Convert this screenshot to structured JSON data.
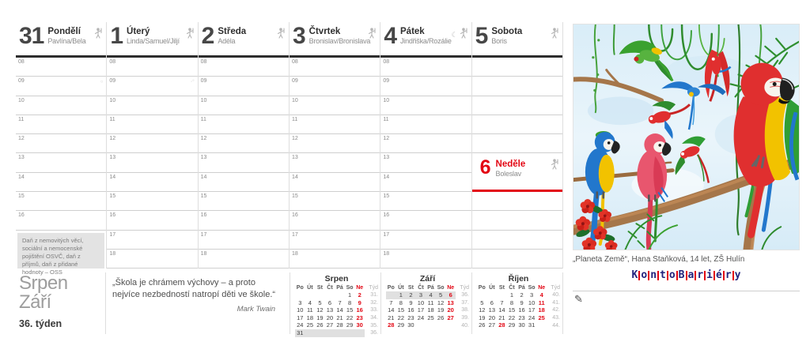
{
  "colors": {
    "red": "#e30613",
    "dark": "#2d2d2d",
    "gray_text": "#8c8c8c",
    "line": "#cfcfcf",
    "note_bg": "#e3e3e3",
    "highlight": "#e0e0e0",
    "logo_navy": "#23237d"
  },
  "days": [
    {
      "number": "31",
      "name": "Pondělí",
      "nameday": "Pavlína/Bela",
      "hours": [
        "08",
        "09",
        "10",
        "11",
        "12",
        "13",
        "14",
        "15",
        "16"
      ],
      "marks": {
        "09": "○"
      },
      "note": "Daň z nemovitých věcí, sociální a nemocenské pojištění OSVČ, daň z příjmů, daň z přidané hodnoty – OSS"
    },
    {
      "number": "1",
      "name": "Úterý",
      "nameday": "Linda/Samuel/Jiljí",
      "hours": [
        "08",
        "09",
        "10",
        "11",
        "12",
        "13",
        "14",
        "15",
        "16",
        "17",
        "18"
      ],
      "marks": {
        "09": "◦°"
      }
    },
    {
      "number": "2",
      "name": "Středa",
      "nameday": "Adéla",
      "hours": [
        "08",
        "09",
        "10",
        "11",
        "12",
        "13",
        "14",
        "15",
        "16",
        "17",
        "18"
      ]
    },
    {
      "number": "3",
      "name": "Čtvrtek",
      "nameday": "Bronislav/Bronislava",
      "hours": [
        "08",
        "09",
        "10",
        "11",
        "12",
        "13",
        "14",
        "15",
        "16",
        "17",
        "18"
      ]
    },
    {
      "number": "4",
      "name": "Pátek",
      "nameday": "Jindřiška/Rozálie",
      "moon": "☾",
      "hours": [
        "08",
        "09",
        "10",
        "11",
        "12",
        "13",
        "14",
        "15",
        "16",
        "17",
        "18"
      ]
    },
    {
      "number": "5",
      "name": "Sobota",
      "nameday": "Boris",
      "hours": [],
      "blank_rows": 11
    }
  ],
  "sunday": {
    "number": "6",
    "name": "Neděle",
    "nameday": "Boleslav"
  },
  "footer": {
    "month_top": "Srpen",
    "month_bottom": "Září",
    "week_label": "36. týden"
  },
  "quote": {
    "text": "„Škola je chrámem výchovy – a proto nejvíce nezbedností natropí děti ve škole.“",
    "author": "Mark Twain"
  },
  "mini_calendars": [
    {
      "title": "Srpen",
      "dow": [
        "Po",
        "Út",
        "St",
        "Čt",
        "Pá",
        "So",
        "Ne"
      ],
      "week_header": "Týd",
      "red_days": [
        "2",
        "9",
        "16",
        "23",
        "30"
      ],
      "weeks": [
        {
          "days": [
            "",
            "",
            "",
            "",
            "",
            "1",
            "2"
          ],
          "num": "31."
        },
        {
          "days": [
            "3",
            "4",
            "5",
            "6",
            "7",
            "8",
            "9"
          ],
          "num": "32."
        },
        {
          "days": [
            "10",
            "11",
            "12",
            "13",
            "14",
            "15",
            "16"
          ],
          "num": "33."
        },
        {
          "days": [
            "17",
            "18",
            "19",
            "20",
            "21",
            "22",
            "23"
          ],
          "num": "34."
        },
        {
          "days": [
            "24",
            "25",
            "26",
            "27",
            "28",
            "29",
            "30"
          ],
          "num": "35."
        },
        {
          "days": [
            "31",
            "",
            "",
            "",
            "",
            "",
            ""
          ],
          "num": "36.",
          "highlight": true
        }
      ]
    },
    {
      "title": "Září",
      "dow": [
        "Po",
        "Út",
        "St",
        "Čt",
        "Pá",
        "So",
        "Ne"
      ],
      "week_header": "Týd",
      "red_days": [
        "6",
        "13",
        "20",
        "27",
        "28"
      ],
      "weeks": [
        {
          "days": [
            "",
            "1",
            "2",
            "3",
            "4",
            "5",
            "6"
          ],
          "num": "36.",
          "highlight": true
        },
        {
          "days": [
            "7",
            "8",
            "9",
            "10",
            "11",
            "12",
            "13"
          ],
          "num": "37."
        },
        {
          "days": [
            "14",
            "15",
            "16",
            "17",
            "18",
            "19",
            "20"
          ],
          "num": "38."
        },
        {
          "days": [
            "21",
            "22",
            "23",
            "24",
            "25",
            "26",
            "27"
          ],
          "num": "39."
        },
        {
          "days": [
            "28",
            "29",
            "30",
            "",
            "",
            "",
            ""
          ],
          "num": "40."
        }
      ]
    },
    {
      "title": "Říjen",
      "dow": [
        "Po",
        "Út",
        "St",
        "Čt",
        "Pá",
        "So",
        "Ne"
      ],
      "week_header": "Týd",
      "red_days": [
        "4",
        "11",
        "18",
        "25",
        "28"
      ],
      "weeks": [
        {
          "days": [
            "",
            "",
            "",
            "1",
            "2",
            "3",
            "4"
          ],
          "num": "40."
        },
        {
          "days": [
            "5",
            "6",
            "7",
            "8",
            "9",
            "10",
            "11"
          ],
          "num": "41."
        },
        {
          "days": [
            "12",
            "13",
            "14",
            "15",
            "16",
            "17",
            "18"
          ],
          "num": "42."
        },
        {
          "days": [
            "19",
            "20",
            "21",
            "22",
            "23",
            "24",
            "25"
          ],
          "num": "43."
        },
        {
          "days": [
            "26",
            "27",
            "28",
            "29",
            "30",
            "31",
            ""
          ],
          "num": "44."
        }
      ]
    }
  ],
  "artwork_caption": "„Planeta Země“, Hana Staňková, 14 let, ZŠ Hulín",
  "logo_letters": [
    "K",
    "o",
    "n",
    "t",
    "o",
    "B",
    "a",
    "r",
    "i",
    "é",
    "r",
    "y"
  ],
  "pencil_icon": "✎"
}
